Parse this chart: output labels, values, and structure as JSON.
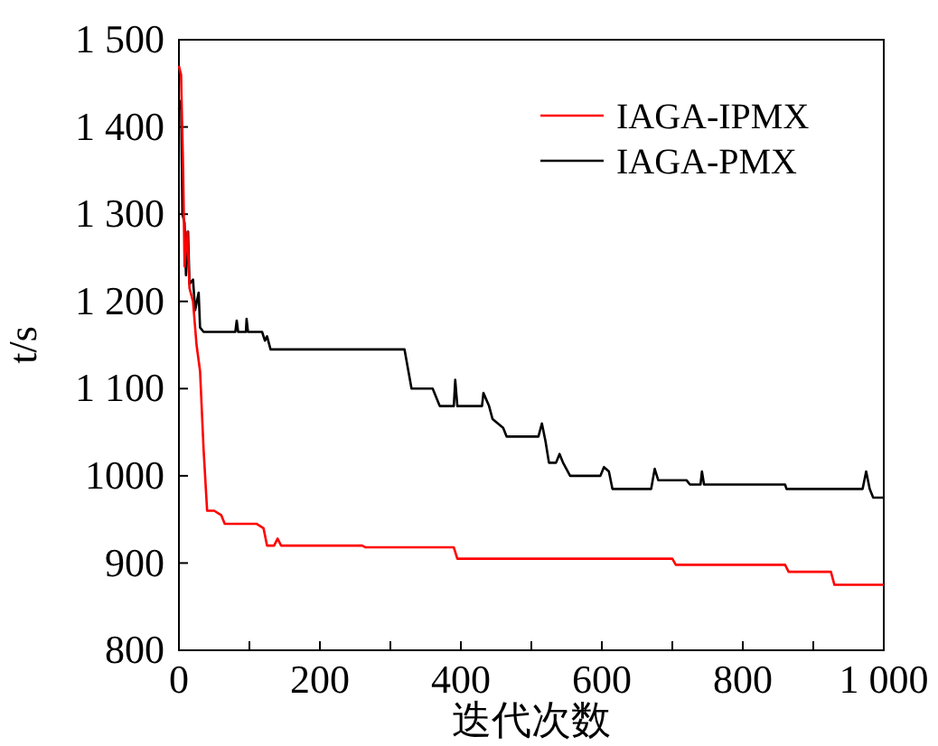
{
  "chart_data": {
    "type": "line",
    "xlabel": "迭代次数",
    "ylabel": "t/s",
    "xlim": [
      0,
      1000
    ],
    "ylim": [
      800,
      1500
    ],
    "xticks": [
      0,
      {
        "value": 100,
        "label": null
      },
      200,
      {
        "value": 300,
        "label": null
      },
      400,
      {
        "value": 500,
        "label": null
      },
      600,
      {
        "value": 700,
        "label": null
      },
      800,
      {
        "value": 900,
        "label": null
      },
      {
        "value": 1000,
        "label": "1 000"
      }
    ],
    "yticks": [
      800,
      900,
      1000,
      {
        "value": 1100,
        "label": "1 100"
      },
      {
        "value": 1200,
        "label": "1 200"
      },
      {
        "value": 1300,
        "label": "1 300"
      },
      {
        "value": 1400,
        "label": "1 400"
      },
      {
        "value": 1500,
        "label": "1 500"
      }
    ],
    "legend": "top right",
    "grid": false,
    "line_style": "solid",
    "marker": "none",
    "series": [
      {
        "name": "IAGA-IPMX",
        "color": "#ff0000",
        "x": [
          0,
          3,
          6,
          8,
          12,
          15,
          20,
          25,
          30,
          35,
          40,
          50,
          60,
          65,
          110,
          120,
          125,
          135,
          140,
          145,
          260,
          265,
          390,
          395,
          700,
          705,
          860,
          865,
          925,
          930,
          1000
        ],
        "values": [
          1470,
          1460,
          1350,
          1240,
          1280,
          1215,
          1200,
          1150,
          1120,
          1030,
          960,
          960,
          955,
          945,
          945,
          940,
          920,
          920,
          928,
          920,
          920,
          918,
          918,
          905,
          905,
          898,
          898,
          890,
          890,
          875,
          875
        ]
      },
      {
        "name": "IAGA-PMX",
        "color": "#000000",
        "x": [
          0,
          3,
          5,
          8,
          10,
          13,
          15,
          20,
          23,
          28,
          30,
          35,
          80,
          82,
          84,
          95,
          96,
          98,
          118,
          122,
          125,
          130,
          320,
          330,
          360,
          370,
          390,
          392,
          395,
          430,
          432,
          440,
          445,
          460,
          465,
          510,
          515,
          520,
          525,
          535,
          540,
          545,
          555,
          598,
          603,
          610,
          615,
          670,
          675,
          680,
          720,
          725,
          740,
          742,
          745,
          860,
          862,
          970,
          975,
          980,
          985,
          1000
        ],
        "values": [
          1420,
          1430,
          1300,
          1290,
          1230,
          1280,
          1220,
          1225,
          1190,
          1210,
          1170,
          1165,
          1165,
          1178,
          1165,
          1165,
          1180,
          1165,
          1165,
          1155,
          1160,
          1145,
          1145,
          1100,
          1100,
          1080,
          1080,
          1110,
          1080,
          1080,
          1095,
          1080,
          1065,
          1055,
          1045,
          1045,
          1060,
          1040,
          1015,
          1015,
          1025,
          1015,
          1000,
          1000,
          1010,
          1005,
          985,
          985,
          1008,
          995,
          995,
          990,
          990,
          1005,
          990,
          990,
          985,
          985,
          1005,
          985,
          975,
          975
        ]
      }
    ]
  }
}
